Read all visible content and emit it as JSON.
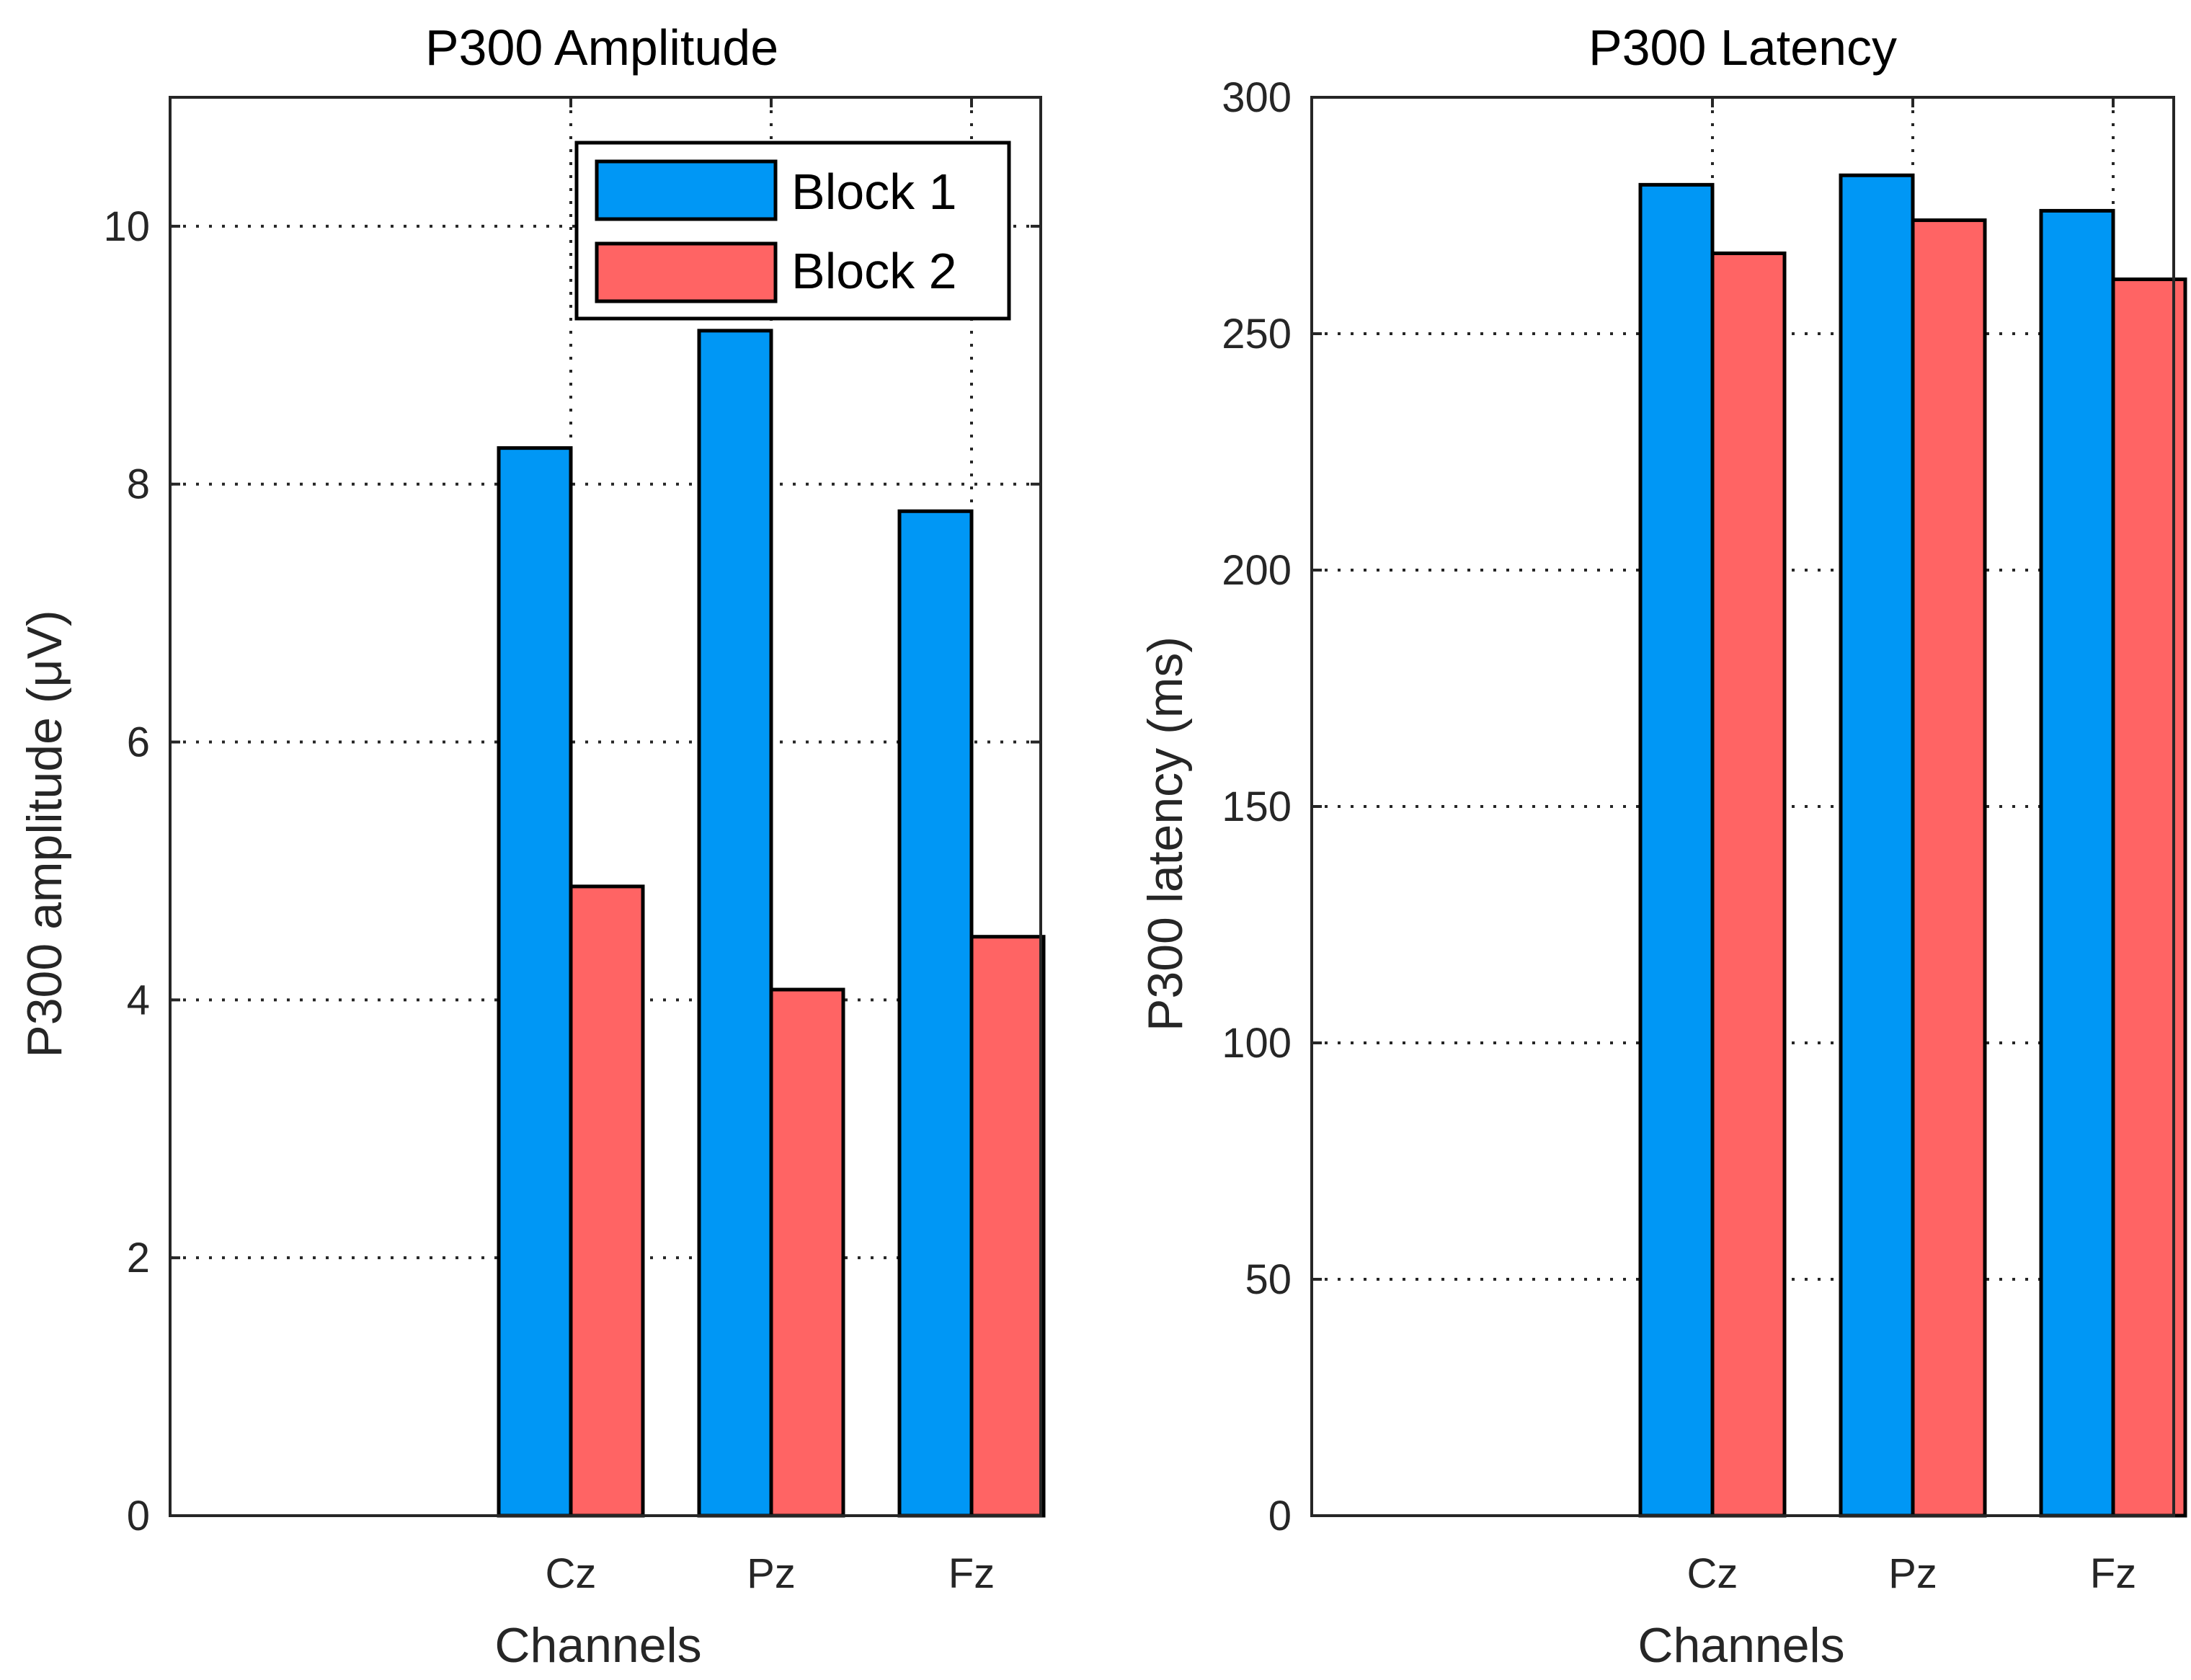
{
  "chart_data": [
    {
      "type": "bar",
      "title": "P300 Amplitude",
      "xlabel": "Channels",
      "ylabel": "P300 amplitude (μV)",
      "categories": [
        "Cz",
        "Pz",
        "Fz"
      ],
      "ylim": [
        0,
        11
      ],
      "yticks": [
        0,
        2,
        4,
        6,
        8,
        10
      ],
      "grid": true,
      "legend": "top-right",
      "series": [
        {
          "name": "Block 1",
          "color": "#0097F5",
          "values": [
            8.28,
            9.19,
            7.79
          ]
        },
        {
          "name": "Block 2",
          "color": "#FF6464",
          "values": [
            4.88,
            4.08,
            4.49
          ]
        }
      ]
    },
    {
      "type": "bar",
      "title": "P300 Latency",
      "xlabel": "Channels",
      "ylabel": "P300 latency (ms)",
      "categories": [
        "Cz",
        "Pz",
        "Fz"
      ],
      "ylim": [
        0,
        300
      ],
      "yticks": [
        0,
        50,
        100,
        150,
        200,
        250,
        300
      ],
      "grid": true,
      "series": [
        {
          "name": "Block 1",
          "color": "#0097F5",
          "values": [
            281.5,
            283.5,
            276
          ]
        },
        {
          "name": "Block 2",
          "color": "#FF6464",
          "values": [
            267,
            274,
            261.5
          ]
        }
      ]
    }
  ]
}
